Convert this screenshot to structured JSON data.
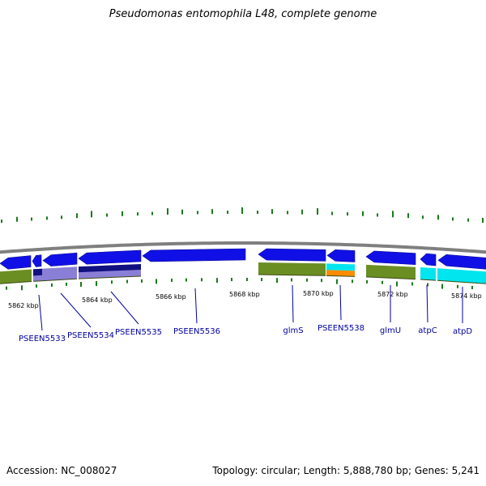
{
  "title": "Pseudomonas entomophila L48, complete genome",
  "footer": {
    "accession": "Accession: NC_008027",
    "summary": "Topology: circular; Length: 5,888,780 bp; Genes: 5,241"
  },
  "colors": {
    "cds_blue": "#1010e6",
    "backbone": "#7f7f7f",
    "gene_olive": "#6b8e23",
    "gene_lavender": "#8a7fd6",
    "gene_navy": "#101080",
    "gene_cyan": "#00e5ee",
    "gene_orange": "#ff8c00",
    "tick_green": "#1a7a1a",
    "label_blue": "#0000a0"
  },
  "ruler": {
    "unit": "kbp",
    "ticks": [
      {
        "kbp": 5862,
        "label": "5862 kbp"
      },
      {
        "kbp": 5864,
        "label": "5864 kbp"
      },
      {
        "kbp": 5866,
        "label": "5866 kbp"
      },
      {
        "kbp": 5868,
        "label": "5868 kbp"
      },
      {
        "kbp": 5870,
        "label": "5870 kbp"
      },
      {
        "kbp": 5872,
        "label": "5872 kbp"
      },
      {
        "kbp": 5874,
        "label": "5874 kbp"
      }
    ]
  },
  "genes": [
    {
      "name": "PSEEN5533"
    },
    {
      "name": "PSEEN5534"
    },
    {
      "name": "PSEEN5535"
    },
    {
      "name": "PSEEN5536"
    },
    {
      "name": "glmS"
    },
    {
      "name": "PSEEN5538"
    },
    {
      "name": "glmU"
    },
    {
      "name": "atpC"
    },
    {
      "name": "atpD"
    }
  ]
}
